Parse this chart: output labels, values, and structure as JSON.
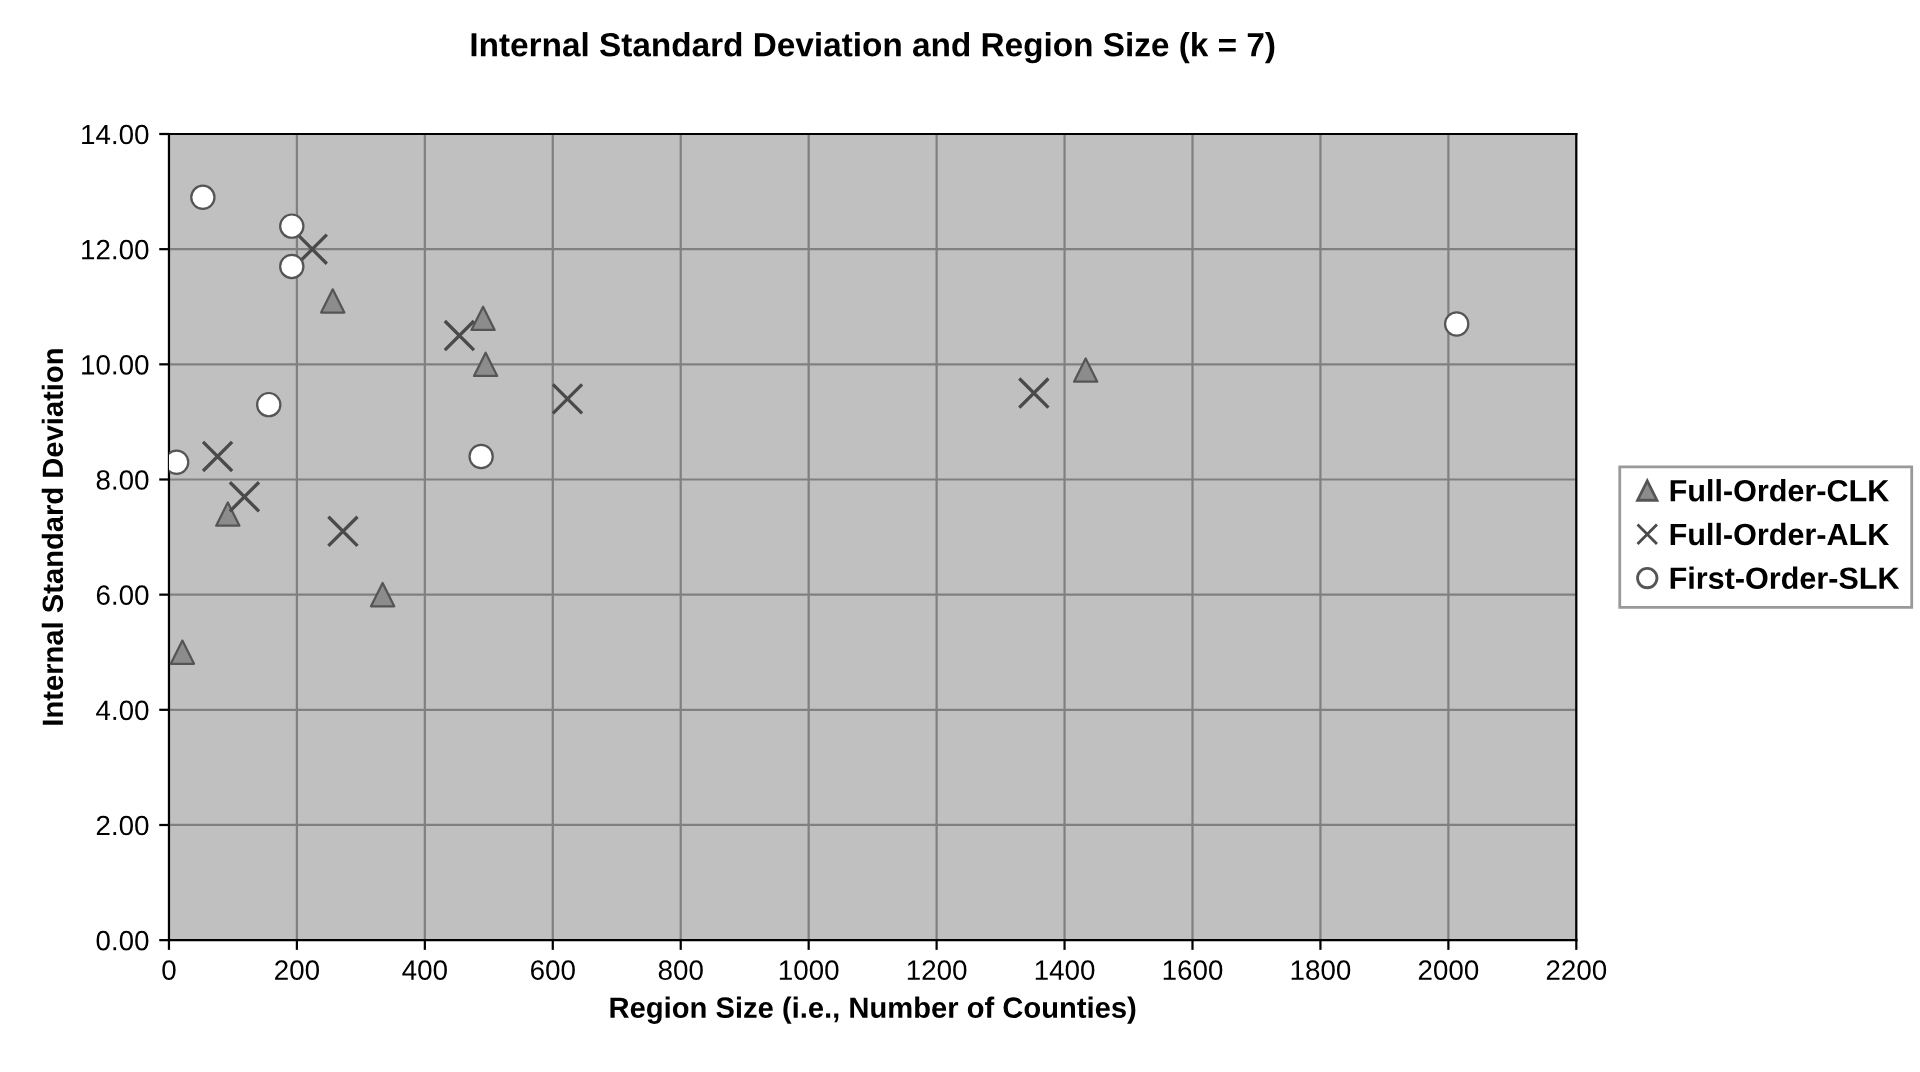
{
  "chart_data": {
    "type": "scatter",
    "title": "Internal Standard Deviation and Region Size (k = 7)",
    "xlabel": "Region Size (i.e., Number of Counties)",
    "ylabel": "Internal Standard Deviation",
    "xlim": [
      0,
      2200
    ],
    "xticks": [
      0,
      200,
      400,
      600,
      800,
      1000,
      1200,
      1400,
      1600,
      1800,
      2000,
      2200
    ],
    "ylim": [
      0,
      14
    ],
    "yticks": [
      {
        "value": 0,
        "label": "0.00"
      },
      {
        "value": 2,
        "label": "2.00"
      },
      {
        "value": 4,
        "label": "4.00"
      },
      {
        "value": 6,
        "label": "6.00"
      },
      {
        "value": 8,
        "label": "8.00"
      },
      {
        "value": 10,
        "label": "10.00"
      },
      {
        "value": 12,
        "label": "12.00"
      },
      {
        "value": 14,
        "label": "14.00"
      }
    ],
    "grid": true,
    "legend": "right",
    "series": [
      {
        "name": "Full-Order-CLK",
        "color": "#8c8c8c",
        "marker": "triangle",
        "x": [
          256,
          491,
          495,
          92,
          334,
          21,
          1433
        ],
        "values": [
          11.1,
          10.8,
          10.0,
          7.4,
          6.0,
          5.0,
          9.9
        ]
      },
      {
        "name": "Full-Order-ALK",
        "color": "#4a4a4a",
        "marker": "cross",
        "x": [
          224,
          454,
          623,
          76,
          118,
          272,
          1352
        ],
        "values": [
          12.0,
          10.5,
          9.4,
          8.4,
          7.7,
          7.1,
          9.5
        ]
      },
      {
        "name": "First-Order-SLK",
        "color": "#ffffff",
        "marker": "circle",
        "x": [
          53,
          192,
          192,
          156,
          12,
          488,
          2013
        ],
        "values": [
          12.9,
          12.4,
          11.7,
          9.3,
          8.3,
          8.4,
          10.7
        ]
      }
    ]
  }
}
